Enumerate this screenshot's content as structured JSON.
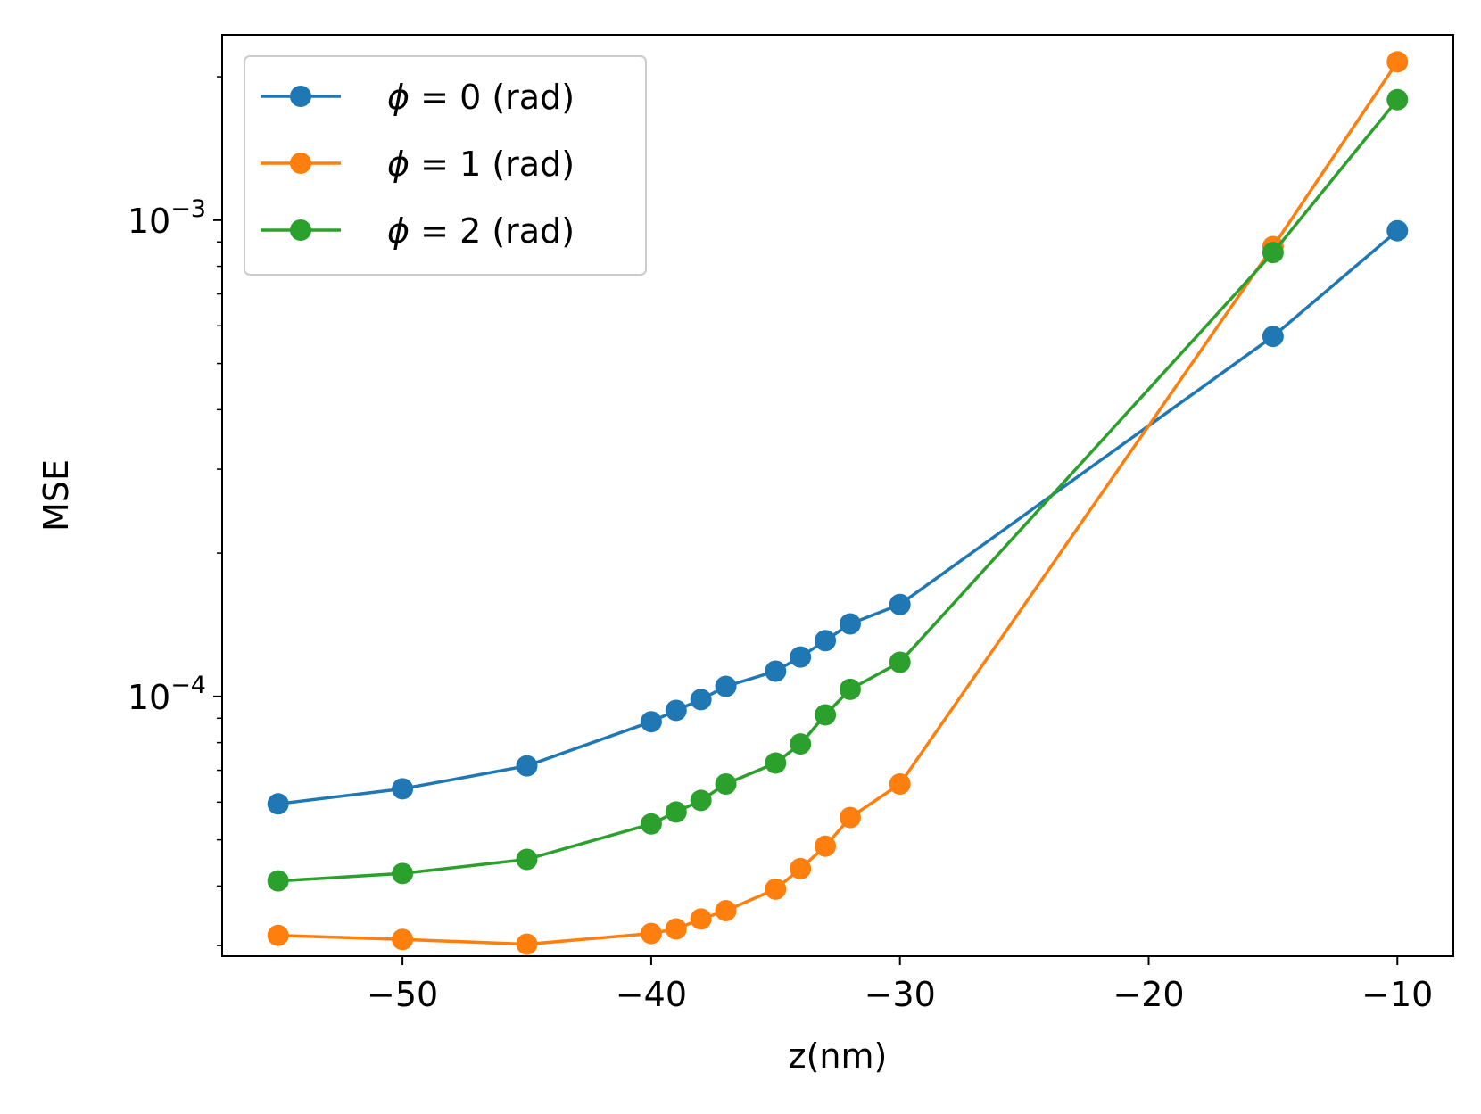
{
  "chart_data": {
    "type": "line",
    "title": "",
    "xlabel": "z(nm)",
    "ylabel": "MSE",
    "xlim": [
      -57.25,
      -7.75
    ],
    "ylim": [
      2.85e-05,
      0.00245
    ],
    "yscale": "log",
    "grid": false,
    "legend_position": "top-left",
    "x_ticks": [
      {
        "value": -50,
        "label": "−50"
      },
      {
        "value": -40,
        "label": "−40"
      },
      {
        "value": -30,
        "label": "−30"
      },
      {
        "value": -20,
        "label": "−20"
      },
      {
        "value": -10,
        "label": "−10"
      }
    ],
    "y_ticks": [
      {
        "value": 0.0001,
        "base": "10",
        "exponent": "−4"
      },
      {
        "value": 0.001,
        "base": "10",
        "exponent": "−3"
      }
    ],
    "series": [
      {
        "name_prefix": "ϕ",
        "name_suffix": " = 0 (rad)",
        "color": "#1f77b4",
        "x": [
          -55,
          -50,
          -45,
          -40,
          -39,
          -38,
          -37,
          -35,
          -34,
          -33,
          -32,
          -30,
          -15,
          -10
        ],
        "y": [
          5.95e-05,
          6.4e-05,
          7.15e-05,
          8.85e-05,
          9.35e-05,
          9.85e-05,
          0.000105,
          0.000113,
          0.000121,
          0.000131,
          0.000142,
          0.000156,
          0.00057,
          0.00095
        ]
      },
      {
        "name_prefix": "ϕ",
        "name_suffix": " = 1 (rad)",
        "color": "#ff7f0e",
        "x": [
          -55,
          -50,
          -45,
          -40,
          -39,
          -38,
          -37,
          -35,
          -34,
          -33,
          -32,
          -30,
          -15,
          -10
        ],
        "y": [
          3.15e-05,
          3.09e-05,
          3.02e-05,
          3.18e-05,
          3.25e-05,
          3.41e-05,
          3.55e-05,
          3.94e-05,
          4.35e-05,
          4.85e-05,
          5.57e-05,
          6.55e-05,
          0.00088,
          0.00215
        ]
      },
      {
        "name_prefix": "ϕ",
        "name_suffix": " = 2 (rad)",
        "color": "#2ca02c",
        "x": [
          -55,
          -50,
          -45,
          -40,
          -39,
          -38,
          -37,
          -35,
          -34,
          -33,
          -32,
          -30,
          -15,
          -10
        ],
        "y": [
          4.1e-05,
          4.25e-05,
          4.55e-05,
          5.4e-05,
          5.72e-05,
          6.05e-05,
          6.55e-05,
          7.25e-05,
          7.95e-05,
          9.15e-05,
          0.0001035,
          0.000118,
          0.000855,
          0.00179
        ]
      }
    ]
  }
}
